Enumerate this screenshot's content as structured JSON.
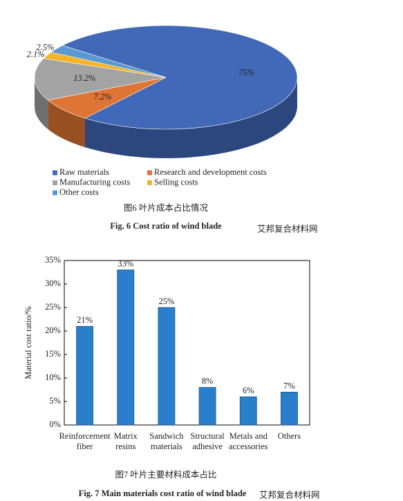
{
  "chart_data": [
    {
      "type": "pie",
      "categories": [
        "Raw materials",
        "Research and development costs",
        "Manufacturing costs",
        "Selling costs",
        "Other costs"
      ],
      "values": [
        75,
        7.2,
        13.2,
        2.1,
        2.5
      ],
      "value_labels": [
        "75%",
        "7.2%",
        "13.2%",
        "2.1%",
        "2.5%"
      ],
      "colors": [
        "#4169b8",
        "#df7534",
        "#a3a3a3",
        "#f4b424",
        "#5a99d1"
      ],
      "legend": "bottom",
      "caption_cn": "图6  叶片成本占比情况",
      "caption_en": "Fig. 6   Cost ratio of wind blade",
      "watermark": "艾邦复合材料网"
    },
    {
      "type": "bar",
      "categories": [
        "Reinforcement fiber",
        "Matrix resins",
        "Sandwich materials",
        "Structural adhesive",
        "Metals and accessories",
        "Others"
      ],
      "values": [
        21,
        33,
        25,
        8,
        6,
        7
      ],
      "value_labels": [
        "21%",
        "33%",
        "25%",
        "8%",
        "6%",
        "7%"
      ],
      "color": "#2a7fcc",
      "ylabel": "Material cost ratio/%",
      "ylim": [
        0,
        35
      ],
      "yticks": [
        {
          "value": 0,
          "label": "0%"
        },
        {
          "value": 5,
          "label": "5%"
        },
        {
          "value": 10,
          "label": "10%"
        },
        {
          "value": 15,
          "label": "15%"
        },
        {
          "value": 20,
          "label": "20%"
        },
        {
          "value": 25,
          "label": "25%"
        },
        {
          "value": 30,
          "label": "30%"
        },
        {
          "value": 35,
          "label": "35%"
        }
      ],
      "caption_cn": "图7  叶片主要材料成本占比",
      "caption_en": "Fig. 7   Main materials cost ratio of wind blade",
      "watermark": "艾邦复合材料网"
    }
  ]
}
